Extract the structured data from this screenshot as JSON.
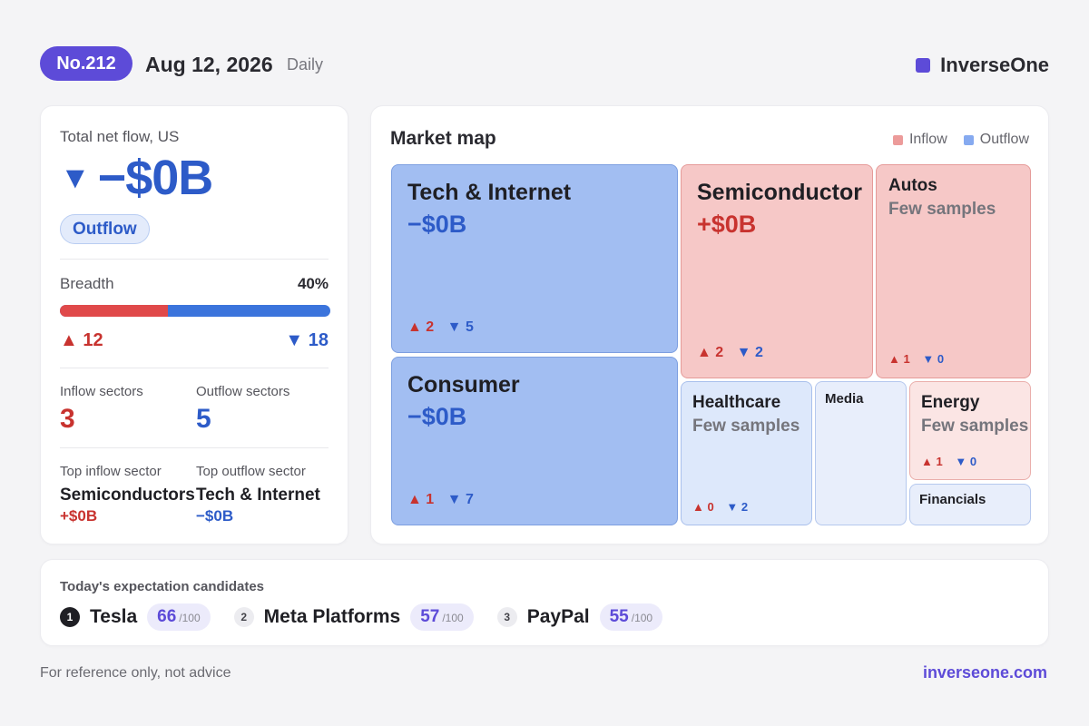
{
  "header": {
    "issue": "No.212",
    "date": "Aug 12, 2026",
    "frequency": "Daily",
    "brand": "InverseOne"
  },
  "summary": {
    "label": "Total net flow, US",
    "direction_icon": "triangle-down",
    "value": "−$0B",
    "direction_badge": "Outflow",
    "breadth_label": "Breadth",
    "breadth_pct": "40%",
    "breadth_fraction": 0.4,
    "advancers": "12",
    "decliners": "18",
    "inflow_sectors_label": "Inflow sectors",
    "inflow_sectors": "3",
    "outflow_sectors_label": "Outflow sectors",
    "outflow_sectors": "5",
    "top_inflow_label": "Top inflow sector",
    "top_inflow_name": "Semiconductors",
    "top_inflow_value": "+$0B",
    "top_outflow_label": "Top outflow sector",
    "top_outflow_name": "Tech & Internet",
    "top_outflow_value": "−$0B"
  },
  "market": {
    "title": "Market map",
    "legend_inflow": "Inflow",
    "legend_outflow": "Outflow",
    "tiles": {
      "tech": {
        "name": "Tech & Internet",
        "value": "−$0B",
        "up": "2",
        "down": "5"
      },
      "semis": {
        "name": "Semiconductor",
        "value": "+$0B",
        "up": "2",
        "down": "2"
      },
      "autos": {
        "name": "Autos",
        "sub": "Few samples",
        "up": "1",
        "down": "0"
      },
      "consumer": {
        "name": "Consumer",
        "value": "−$0B",
        "up": "1",
        "down": "7"
      },
      "healthcare": {
        "name": "Healthcare",
        "sub": "Few samples",
        "up": "0",
        "down": "2"
      },
      "media": {
        "name": "Media"
      },
      "energy": {
        "name": "Energy",
        "sub": "Few samples",
        "up": "1",
        "down": "0"
      },
      "financials": {
        "name": "Financials"
      }
    }
  },
  "candidates": {
    "title": "Today's expectation candidates",
    "items": [
      {
        "rank": "1",
        "name": "Tesla",
        "score": "66",
        "max": "/100"
      },
      {
        "rank": "2",
        "name": "Meta Platforms",
        "score": "57",
        "max": "/100"
      },
      {
        "rank": "3",
        "name": "PayPal",
        "score": "55",
        "max": "/100"
      }
    ]
  },
  "footer": {
    "note": "For reference only, not advice",
    "url": "inverseone.com"
  },
  "colors": {
    "accent": "#5d4bd8",
    "inflow": "#c8332f",
    "outflow": "#2d5bc8"
  }
}
